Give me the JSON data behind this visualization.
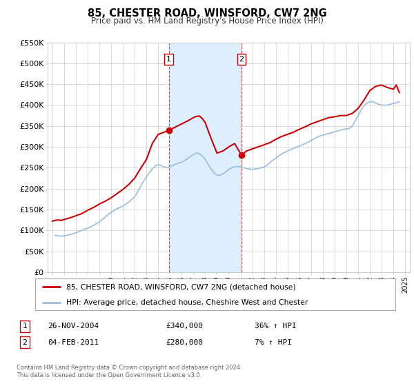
{
  "title": "85, CHESTER ROAD, WINSFORD, CW7 2NG",
  "subtitle": "Price paid vs. HM Land Registry's House Price Index (HPI)",
  "background_color": "#ffffff",
  "plot_bg_color": "#ffffff",
  "grid_color": "#cccccc",
  "legend_entry1": "85, CHESTER ROAD, WINSFORD, CW7 2NG (detached house)",
  "legend_entry2": "HPI: Average price, detached house, Cheshire West and Chester",
  "sale1_label": "1",
  "sale1_date": "26-NOV-2004",
  "sale1_price": "£340,000",
  "sale1_hpi": "36% ↑ HPI",
  "sale1_year": 2004.9,
  "sale1_value": 340000,
  "sale2_label": "2",
  "sale2_date": "04-FEB-2011",
  "sale2_price": "£280,000",
  "sale2_hpi": "7% ↑ HPI",
  "sale2_year": 2011.09,
  "sale2_value": 280000,
  "red_line_color": "#cc0000",
  "blue_line_color": "#99bbdd",
  "shade_color": "#ddeeff",
  "dashed_line_color": "#cc0000",
  "footer_text": "Contains HM Land Registry data © Crown copyright and database right 2024.\nThis data is licensed under the Open Government Licence v3.0.",
  "ylim": [
    0,
    550000
  ],
  "yticks": [
    0,
    50000,
    100000,
    150000,
    200000,
    250000,
    300000,
    350000,
    400000,
    450000,
    500000,
    550000
  ],
  "ytick_labels": [
    "£0",
    "£50K",
    "£100K",
    "£150K",
    "£200K",
    "£250K",
    "£300K",
    "£350K",
    "£400K",
    "£450K",
    "£500K",
    "£550K"
  ],
  "hpi_data": {
    "years": [
      1995.25,
      1995.5,
      1995.75,
      1996.0,
      1996.25,
      1996.5,
      1996.75,
      1997.0,
      1997.25,
      1997.5,
      1997.75,
      1998.0,
      1998.25,
      1998.5,
      1998.75,
      1999.0,
      1999.25,
      1999.5,
      1999.75,
      2000.0,
      2000.25,
      2000.5,
      2000.75,
      2001.0,
      2001.25,
      2001.5,
      2001.75,
      2002.0,
      2002.25,
      2002.5,
      2002.75,
      2003.0,
      2003.25,
      2003.5,
      2003.75,
      2004.0,
      2004.25,
      2004.5,
      2004.75,
      2005.0,
      2005.25,
      2005.5,
      2005.75,
      2006.0,
      2006.25,
      2006.5,
      2006.75,
      2007.0,
      2007.25,
      2007.5,
      2007.75,
      2008.0,
      2008.25,
      2008.5,
      2008.75,
      2009.0,
      2009.25,
      2009.5,
      2009.75,
      2010.0,
      2010.25,
      2010.5,
      2010.75,
      2011.0,
      2011.25,
      2011.5,
      2011.75,
      2012.0,
      2012.25,
      2012.5,
      2012.75,
      2013.0,
      2013.25,
      2013.5,
      2013.75,
      2014.0,
      2014.25,
      2014.5,
      2014.75,
      2015.0,
      2015.25,
      2015.5,
      2015.75,
      2016.0,
      2016.25,
      2016.5,
      2016.75,
      2017.0,
      2017.25,
      2017.5,
      2017.75,
      2018.0,
      2018.25,
      2018.5,
      2018.75,
      2019.0,
      2019.25,
      2019.5,
      2019.75,
      2020.0,
      2020.25,
      2020.5,
      2020.75,
      2021.0,
      2021.25,
      2021.5,
      2021.75,
      2022.0,
      2022.25,
      2022.5,
      2022.75,
      2023.0,
      2023.25,
      2023.5,
      2023.75,
      2024.0,
      2024.25,
      2024.5
    ],
    "values": [
      88000,
      87000,
      86000,
      87000,
      88000,
      90000,
      92000,
      94000,
      97000,
      100000,
      103000,
      105000,
      108000,
      112000,
      116000,
      120000,
      126000,
      132000,
      138000,
      143000,
      148000,
      152000,
      155000,
      158000,
      163000,
      168000,
      174000,
      180000,
      192000,
      205000,
      217000,
      228000,
      238000,
      247000,
      254000,
      258000,
      255000,
      252000,
      250000,
      252000,
      256000,
      259000,
      261000,
      263000,
      267000,
      272000,
      277000,
      282000,
      285000,
      284000,
      278000,
      270000,
      258000,
      247000,
      238000,
      232000,
      232000,
      235000,
      240000,
      246000,
      250000,
      252000,
      253000,
      252000,
      250000,
      248000,
      247000,
      246000,
      247000,
      248000,
      250000,
      252000,
      256000,
      262000,
      268000,
      273000,
      278000,
      283000,
      287000,
      290000,
      293000,
      296000,
      299000,
      302000,
      305000,
      308000,
      311000,
      315000,
      319000,
      323000,
      326000,
      328000,
      330000,
      332000,
      334000,
      336000,
      338000,
      340000,
      342000,
      343000,
      344000,
      350000,
      362000,
      375000,
      388000,
      398000,
      405000,
      408000,
      408000,
      405000,
      402000,
      400000,
      400000,
      400000,
      402000,
      404000,
      406000,
      408000
    ]
  },
  "price_data": {
    "years": [
      1995.0,
      1995.25,
      1995.5,
      1995.75,
      1996.0,
      1996.25,
      1996.5,
      1997.0,
      1997.5,
      1998.0,
      1998.5,
      1999.0,
      1999.5,
      2000.0,
      2000.5,
      2001.0,
      2001.5,
      2002.0,
      2002.5,
      2003.0,
      2003.5,
      2004.0,
      2004.5,
      2004.9,
      2005.5,
      2006.0,
      2006.5,
      2007.0,
      2007.25,
      2007.5,
      2007.75,
      2008.0,
      2008.5,
      2009.0,
      2009.5,
      2010.0,
      2010.5,
      2011.09,
      2011.5,
      2012.0,
      2012.5,
      2013.0,
      2013.5,
      2014.0,
      2014.5,
      2015.0,
      2015.5,
      2016.0,
      2016.5,
      2017.0,
      2017.5,
      2018.0,
      2018.5,
      2019.0,
      2019.5,
      2020.0,
      2020.5,
      2021.0,
      2021.5,
      2022.0,
      2022.5,
      2023.0,
      2023.5,
      2024.0,
      2024.25,
      2024.5
    ],
    "values": [
      122000,
      124000,
      125000,
      124000,
      126000,
      128000,
      130000,
      135000,
      140000,
      148000,
      155000,
      163000,
      170000,
      178000,
      188000,
      198000,
      210000,
      225000,
      248000,
      270000,
      308000,
      330000,
      335000,
      340000,
      348000,
      355000,
      362000,
      370000,
      373000,
      374000,
      368000,
      358000,
      320000,
      285000,
      290000,
      300000,
      308000,
      280000,
      290000,
      295000,
      300000,
      305000,
      310000,
      318000,
      325000,
      330000,
      335000,
      342000,
      348000,
      355000,
      360000,
      365000,
      370000,
      372000,
      375000,
      375000,
      380000,
      392000,
      412000,
      435000,
      445000,
      448000,
      442000,
      438000,
      448000,
      430000
    ]
  }
}
